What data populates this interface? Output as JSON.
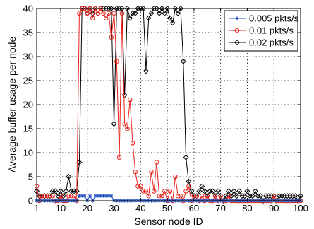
{
  "chart_data": {
    "type": "line",
    "title": "",
    "xlabel": "Sensor node ID",
    "ylabel": "Average buffer usage per node",
    "xlim": [
      1,
      100
    ],
    "ylim": [
      0,
      40
    ],
    "xticks": [
      1,
      10,
      20,
      30,
      40,
      50,
      60,
      70,
      80,
      90,
      100
    ],
    "yticks": [
      0,
      5,
      10,
      15,
      20,
      25,
      30,
      35,
      40
    ],
    "grid": true,
    "legend_position": "top-right",
    "series": [
      {
        "name": "0.005 pkts/s",
        "color": "#1f4fbf",
        "marker": "star",
        "x": [
          1,
          2,
          3,
          4,
          5,
          6,
          7,
          8,
          9,
          10,
          11,
          12,
          13,
          14,
          15,
          16,
          17,
          18,
          19,
          20,
          21,
          22,
          23,
          24,
          25,
          26,
          27,
          28,
          29,
          30,
          31,
          32,
          33,
          34,
          35,
          36,
          37,
          38,
          39,
          40,
          41,
          42,
          43,
          44,
          45,
          46,
          47,
          48,
          49,
          50,
          51,
          52,
          53,
          54,
          55,
          56,
          57,
          58,
          59,
          60,
          61,
          62,
          63,
          64,
          65,
          66,
          67,
          68,
          69,
          70,
          71,
          72,
          73,
          74,
          75,
          76,
          77,
          78,
          79,
          80,
          81,
          82,
          83,
          84,
          85,
          86,
          87,
          88,
          89,
          90,
          91,
          92,
          93,
          94,
          95,
          96,
          97,
          98,
          99,
          100
        ],
        "y": [
          0,
          0,
          0,
          0,
          0,
          0,
          0,
          0,
          0,
          0,
          0,
          0,
          0,
          0,
          0,
          0,
          1,
          1,
          1,
          0,
          1,
          0,
          1,
          1,
          1,
          1,
          1,
          1,
          1,
          0,
          0,
          0,
          0,
          0,
          0,
          0,
          0,
          0,
          0,
          0,
          0,
          0,
          0,
          0,
          0,
          0,
          0,
          0,
          0,
          0,
          0,
          0,
          0,
          0,
          0,
          0,
          0,
          0,
          0,
          0,
          0,
          0,
          0,
          0,
          0,
          0,
          0,
          0,
          0,
          0,
          0,
          0,
          0,
          0,
          0,
          0,
          0,
          0,
          0,
          0,
          0,
          0,
          0,
          0,
          0,
          0,
          0,
          0,
          0,
          0,
          0,
          0,
          0,
          0,
          0,
          0,
          0,
          0,
          0,
          0
        ]
      },
      {
        "name": "0.01 pkts/s",
        "color": "#e8231e",
        "marker": "circle",
        "x": [
          1,
          2,
          3,
          4,
          5,
          6,
          7,
          8,
          9,
          10,
          11,
          12,
          13,
          14,
          15,
          16,
          17,
          18,
          19,
          20,
          21,
          22,
          23,
          24,
          25,
          26,
          27,
          28,
          29,
          30,
          31,
          32,
          33,
          34,
          35,
          36,
          37,
          38,
          39,
          40,
          41,
          42,
          43,
          44,
          45,
          46,
          47,
          48,
          49,
          50,
          51,
          52,
          53,
          54,
          55,
          56,
          57,
          58,
          59,
          60,
          61,
          62,
          63,
          64,
          65,
          66,
          67,
          68,
          69,
          70,
          71,
          72,
          73,
          74,
          75,
          76,
          77,
          78,
          79,
          80,
          81,
          82,
          83,
          84,
          85,
          86,
          87,
          88,
          89,
          90,
          91,
          92,
          93,
          94,
          95,
          96,
          97,
          98,
          99,
          100
        ],
        "y": [
          3,
          0,
          1,
          1,
          1,
          1,
          1,
          0,
          0,
          1,
          0,
          0,
          1,
          1,
          1,
          0,
          39,
          40,
          40,
          39,
          40,
          38,
          40,
          39,
          40,
          39,
          38,
          39,
          34,
          39,
          29,
          9,
          39,
          16,
          15,
          21,
          12,
          6,
          3,
          3,
          2,
          2,
          1,
          6,
          2,
          8,
          1,
          1,
          2,
          0,
          2,
          0,
          5,
          1,
          1,
          0,
          2,
          3,
          0,
          1,
          1,
          0,
          1,
          0,
          1,
          0,
          0,
          1,
          0,
          1,
          0,
          0,
          1,
          0,
          0,
          0,
          0,
          0,
          0,
          0,
          0,
          0,
          0,
          0,
          0,
          0,
          0,
          0,
          0,
          1,
          0,
          0,
          0,
          0,
          0,
          0,
          0,
          0,
          0,
          0
        ]
      },
      {
        "name": "0.02 pkts/s",
        "color": "#000000",
        "marker": "diamond",
        "x": [
          1,
          2,
          3,
          4,
          5,
          6,
          7,
          8,
          9,
          10,
          11,
          12,
          13,
          14,
          15,
          16,
          17,
          18,
          19,
          20,
          21,
          22,
          23,
          24,
          25,
          26,
          27,
          28,
          29,
          30,
          31,
          32,
          33,
          34,
          35,
          36,
          37,
          38,
          39,
          40,
          41,
          42,
          43,
          44,
          45,
          46,
          47,
          48,
          49,
          50,
          51,
          52,
          53,
          54,
          55,
          56,
          57,
          58,
          59,
          60,
          61,
          62,
          63,
          64,
          65,
          66,
          67,
          68,
          69,
          70,
          71,
          72,
          73,
          74,
          75,
          76,
          77,
          78,
          79,
          80,
          81,
          82,
          83,
          84,
          85,
          86,
          87,
          88,
          89,
          90,
          91,
          92,
          93,
          94,
          95,
          96,
          97,
          98,
          99,
          100
        ],
        "y": [
          2,
          1,
          1,
          1,
          1,
          1,
          2,
          2,
          1,
          2,
          1,
          2,
          5,
          2,
          2,
          2,
          8,
          40,
          40,
          39,
          40,
          39,
          40,
          39,
          40,
          40,
          40,
          40,
          40,
          16,
          40,
          40,
          40,
          22,
          40,
          38,
          39,
          39,
          40,
          40,
          40,
          27,
          38,
          39,
          40,
          40,
          39,
          40,
          39,
          40,
          38,
          37,
          40,
          39,
          40,
          29,
          9,
          4,
          2,
          1,
          1,
          2,
          3,
          2,
          1,
          2,
          2,
          1,
          2,
          1,
          0,
          1,
          2,
          1,
          2,
          1,
          2,
          1,
          1,
          2,
          1,
          1,
          2,
          1,
          1,
          0,
          1,
          1,
          1,
          1,
          0,
          1,
          1,
          1,
          1,
          1,
          1,
          1,
          0,
          1
        ]
      }
    ]
  }
}
